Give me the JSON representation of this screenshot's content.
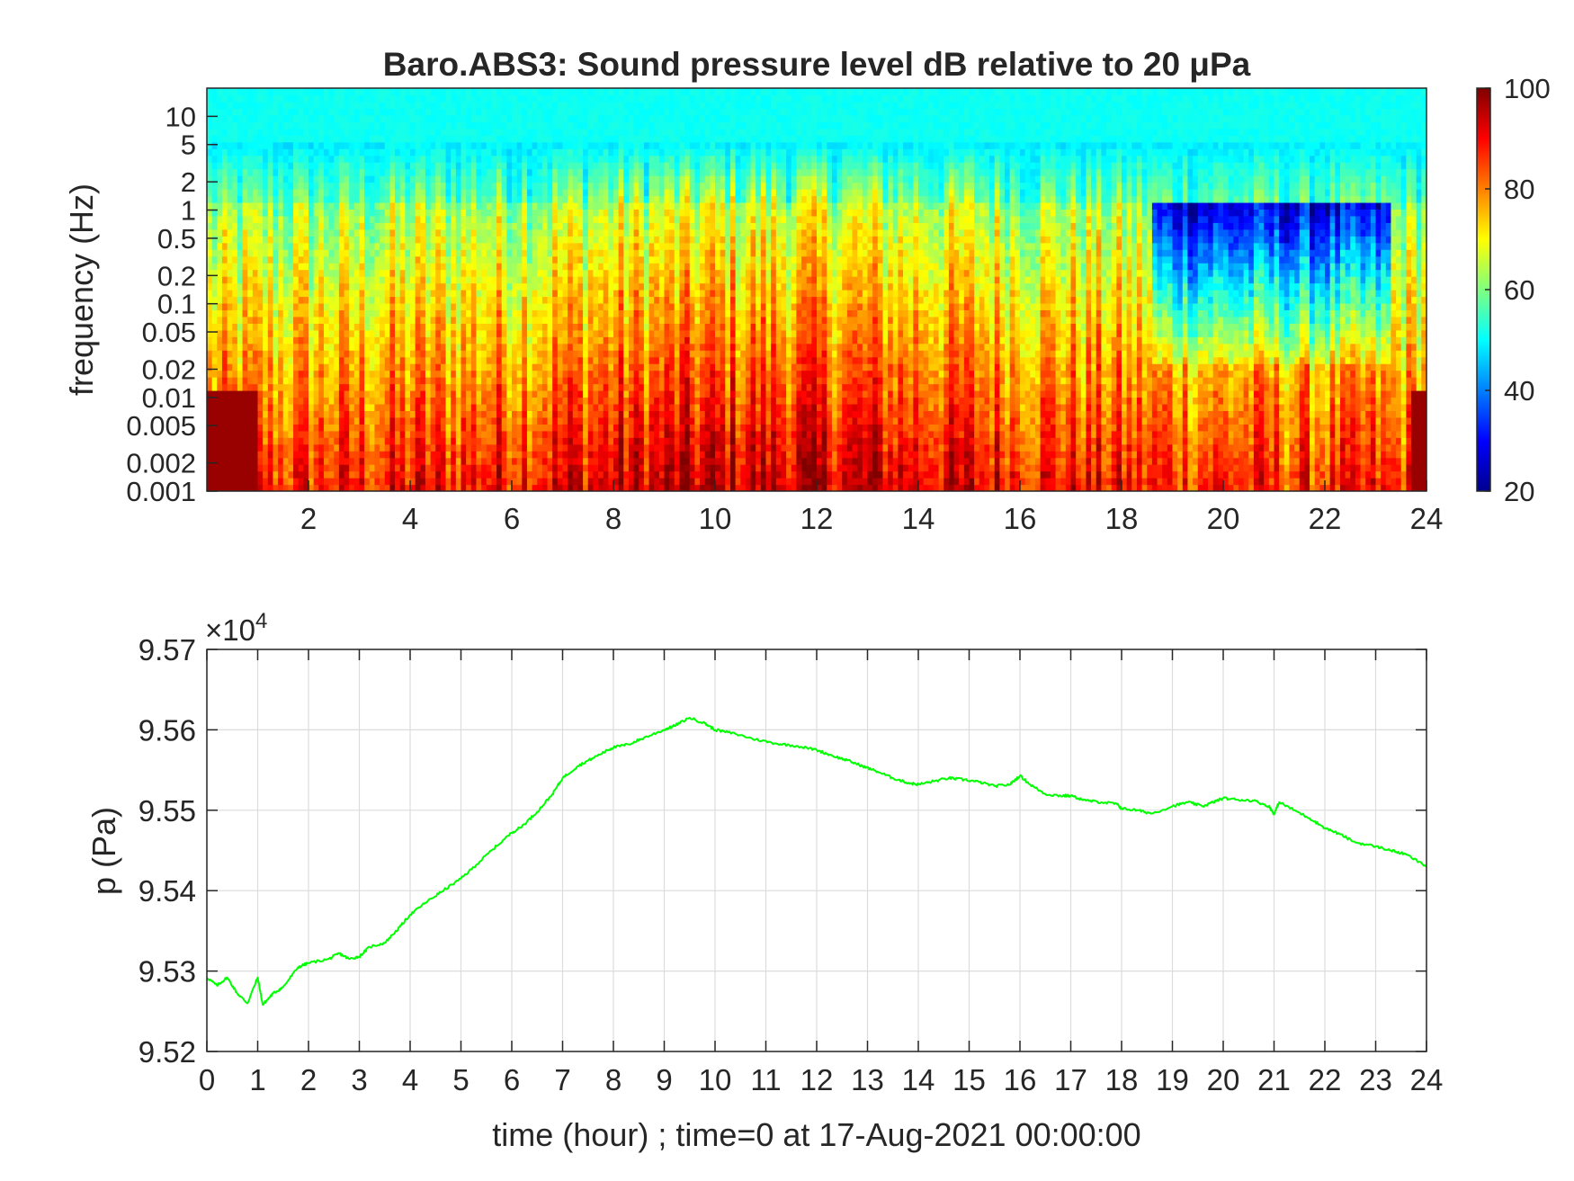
{
  "chart_data": [
    {
      "type": "heatmap",
      "title": "Baro.ABS3: Sound pressure level dB relative to 20 μPa",
      "ylabel": "frequency (Hz)",
      "xlabel": "",
      "yscale": "log",
      "xlim": [
        0,
        24
      ],
      "ylim": [
        0.001,
        20
      ],
      "xticks": [
        "2",
        "4",
        "6",
        "8",
        "10",
        "12",
        "14",
        "16",
        "18",
        "20",
        "22",
        "24"
      ],
      "yticks": [
        "0.001",
        "0.002",
        "0.005",
        "0.01",
        "0.02",
        "0.05",
        "0.1",
        "0.2",
        "0.5",
        "1",
        "2",
        "5",
        "10"
      ],
      "colormap": "jet",
      "colorbar": {
        "min": 20,
        "max": 100,
        "ticks": [
          "20",
          "40",
          "60",
          "80",
          "100"
        ]
      },
      "grid": false
    },
    {
      "type": "line",
      "title": "",
      "xlabel": "time (hour) ; time=0 at 17-Aug-2021 00:00:00",
      "ylabel": "p (Pa)",
      "exponent_label": "×10",
      "exponent_power": "4",
      "xlim": [
        0,
        24
      ],
      "ylim": [
        95200,
        95700
      ],
      "xticks": [
        "0",
        "1",
        "2",
        "3",
        "4",
        "5",
        "6",
        "7",
        "8",
        "9",
        "10",
        "11",
        "12",
        "13",
        "14",
        "15",
        "16",
        "17",
        "18",
        "19",
        "20",
        "21",
        "22",
        "23",
        "24"
      ],
      "yticks": [
        "9.52",
        "9.53",
        "9.54",
        "9.55",
        "9.56",
        "9.57"
      ],
      "grid": true,
      "color": "#00ff00",
      "series": [
        {
          "x": [
            0,
            0.2,
            0.4,
            0.6,
            0.8,
            1.0,
            1.1,
            1.3,
            1.5,
            1.8,
            2.0,
            2.4,
            2.6,
            2.8,
            3.0,
            3.2,
            3.5,
            3.8,
            4.0,
            4.3,
            4.6,
            5.0,
            5.3,
            5.6,
            6.0,
            6.2,
            6.5,
            6.8,
            7.0,
            7.3,
            7.6,
            7.9,
            8.0,
            8.3,
            8.6,
            9.0,
            9.2,
            9.5,
            9.8,
            10.0,
            10.4,
            10.8,
            11.2,
            11.6,
            12.0,
            12.3,
            12.6,
            12.9,
            13.2,
            13.5,
            13.8,
            14.0,
            14.3,
            14.6,
            14.9,
            15.2,
            15.5,
            15.8,
            16.0,
            16.2,
            16.5,
            16.8,
            17.0,
            17.3,
            17.6,
            17.9,
            18.0,
            18.3,
            18.6,
            19.0,
            19.3,
            19.6,
            19.8,
            20.0,
            20.3,
            20.6,
            20.9,
            21.0,
            21.1,
            21.4,
            21.7,
            22.0,
            22.3,
            22.6,
            23.0,
            23.3,
            23.6,
            24.0
          ],
          "y": [
            95292,
            95282,
            95292,
            95272,
            95260,
            95292,
            95258,
            95272,
            95280,
            95305,
            95310,
            95315,
            95322,
            95315,
            95318,
            95330,
            95335,
            95355,
            95370,
            95385,
            95398,
            95415,
            95432,
            95450,
            95472,
            95480,
            95498,
            95520,
            95540,
            95555,
            95565,
            95575,
            95578,
            95582,
            95590,
            95600,
            95605,
            95615,
            95608,
            95600,
            95595,
            95588,
            95583,
            95580,
            95575,
            95568,
            95562,
            95555,
            95548,
            95540,
            95534,
            95532,
            95536,
            95540,
            95538,
            95535,
            95530,
            95532,
            95543,
            95532,
            95520,
            95518,
            95518,
            95512,
            95510,
            95508,
            95502,
            95500,
            95496,
            95505,
            95510,
            95505,
            95510,
            95515,
            95513,
            95512,
            95505,
            95495,
            95510,
            95500,
            95490,
            95478,
            95470,
            95460,
            95455,
            95450,
            95445,
            95430
          ]
        }
      ]
    }
  ]
}
